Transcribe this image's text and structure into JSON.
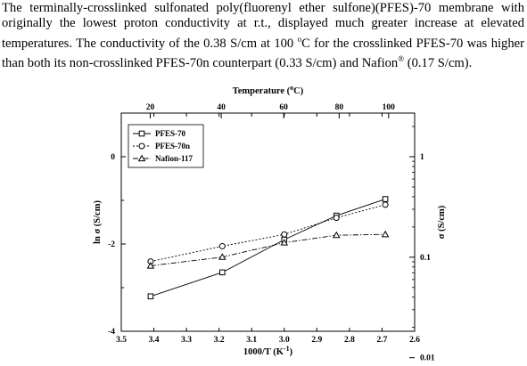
{
  "paragraph": {
    "p1": "The terminally-crosslinked sulfonated poly(fluorenyl ether sulfone)(PFES)-70 membrane with originally the lowest proton conductivity at r.t., displayed much greater increase at elevated temperatures. The conductivity of the 0.38 S/cm at 100 ",
    "deg": "o",
    "p2": "C for the crosslinked PFES-70 was higher than both its non-crosslinked PFES-70n counterpart (0.33 S/cm) and Nafion",
    "reg": "®",
    "p3": " (0.17 S/cm)."
  },
  "chart_data": {
    "type": "line",
    "x_bottom": {
      "label": "1000/T (K",
      "label_sup": "-1",
      "label_end": ")",
      "range": [
        3.5,
        2.6
      ],
      "ticks": [
        "3.5",
        "3.4",
        "3.3",
        "3.2",
        "3.1",
        "3.0",
        "2.9",
        "2.8",
        "2.7",
        "2.6"
      ]
    },
    "x_top": {
      "label": "Temperature (",
      "label_sup": "o",
      "label_end": "C)",
      "ticks": [
        "20",
        "40",
        "60",
        "80",
        "100"
      ]
    },
    "y_left": {
      "label": "ln σ (S/cm)",
      "range": [
        -4,
        1
      ],
      "ticks": [
        "0",
        "-2",
        "-4"
      ]
    },
    "y_right": {
      "label": "σ (S/cm)",
      "scale": "log",
      "ticks": [
        "1",
        "0.1",
        "0.01"
      ]
    },
    "legend_position": "top-left",
    "series": [
      {
        "name": "PFES-70",
        "marker": "square",
        "dash": "solid",
        "x": [
          3.41,
          3.19,
          3.0,
          2.84,
          2.69
        ],
        "y": [
          -3.2,
          -2.65,
          -1.9,
          -1.35,
          -0.97
        ]
      },
      {
        "name": "PFES-70n",
        "marker": "circle",
        "dash": "dotted",
        "x": [
          3.41,
          3.19,
          3.0,
          2.84,
          2.69
        ],
        "y": [
          -2.4,
          -2.05,
          -1.78,
          -1.4,
          -1.1
        ]
      },
      {
        "name": "Nafion-117",
        "marker": "triangle",
        "dash": "dashdot",
        "x": [
          3.41,
          3.19,
          3.0,
          2.84,
          2.69
        ],
        "y": [
          -2.5,
          -2.3,
          -1.97,
          -1.8,
          -1.78
        ]
      }
    ]
  }
}
